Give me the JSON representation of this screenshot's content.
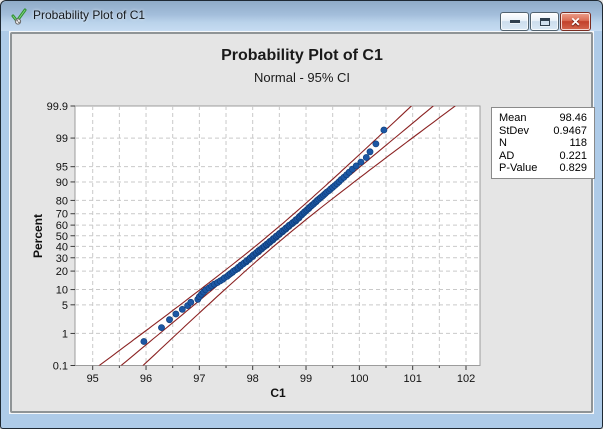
{
  "window": {
    "title": "Probability Plot of C1",
    "icons": {
      "window": "green-check-graph-icon",
      "minimize": "minimize-icon",
      "maximize": "maximize-icon",
      "close": "close-icon"
    }
  },
  "chart_data": {
    "type": "scatter",
    "subtype": "normal-probability-plot",
    "title": "Probability Plot of C1",
    "subtitle": "Normal - 95% CI",
    "xlabel": "C1",
    "ylabel": "Percent",
    "x_ticks": [
      95,
      96,
      97,
      98,
      99,
      100,
      101,
      102
    ],
    "x_minor_step": 0.5,
    "xlim": [
      94.67,
      102.26
    ],
    "y_ticks_percent": [
      0.1,
      1,
      5,
      10,
      20,
      30,
      40,
      50,
      60,
      70,
      80,
      90,
      95,
      99,
      99.9
    ],
    "ylim_percent": [
      0.1,
      99.9
    ],
    "grid": true,
    "legend_position": "outside-right",
    "fit": {
      "distribution": "normal",
      "mean": 98.46,
      "stdev": 0.9467,
      "n": 118,
      "ci_percent": 95
    },
    "stats_box": [
      {
        "label": "Mean",
        "value": "98.46"
      },
      {
        "label": "StDev",
        "value": "0.9467"
      },
      {
        "label": "N",
        "value": "118"
      },
      {
        "label": "AD",
        "value": "0.221"
      },
      {
        "label": "P-Value",
        "value": "0.829"
      }
    ],
    "sample": [
      95.96,
      96.29,
      96.44,
      96.56,
      96.68,
      96.78,
      96.84,
      96.97,
      97.0,
      97.04,
      97.08,
      97.12,
      97.18,
      97.23,
      97.28,
      97.34,
      97.39,
      97.44,
      97.47,
      97.52,
      97.55,
      97.58,
      97.62,
      97.64,
      97.68,
      97.72,
      97.73,
      97.77,
      97.78,
      97.82,
      97.84,
      97.88,
      97.89,
      97.93,
      97.94,
      97.96,
      98.0,
      98.0,
      98.02,
      98.06,
      98.07,
      98.11,
      98.11,
      98.14,
      98.17,
      98.18,
      98.21,
      98.22,
      98.26,
      98.26,
      98.29,
      98.32,
      98.32,
      98.35,
      98.38,
      98.38,
      98.41,
      98.44,
      98.44,
      98.47,
      98.5,
      98.5,
      98.53,
      98.56,
      98.56,
      98.59,
      98.62,
      98.62,
      98.65,
      98.68,
      98.68,
      98.71,
      98.74,
      98.75,
      98.78,
      98.81,
      98.81,
      98.84,
      98.87,
      98.87,
      98.89,
      98.92,
      98.93,
      98.96,
      98.97,
      99.0,
      99.02,
      99.05,
      99.06,
      99.09,
      99.11,
      99.14,
      99.16,
      99.19,
      99.21,
      99.24,
      99.27,
      99.3,
      99.33,
      99.36,
      99.39,
      99.43,
      99.46,
      99.5,
      99.54,
      99.58,
      99.62,
      99.66,
      99.71,
      99.76,
      99.81,
      99.87,
      99.94,
      100.03,
      100.13,
      100.2,
      100.31,
      100.46
    ],
    "colors": {
      "point": "#1c57a4",
      "point_edge": "#0e3c78",
      "fit_line": "#8b2222",
      "grid": "#c9c9c9",
      "plot_bg": "#ffffff",
      "plot_border": "#9c9c9c",
      "figure_bg": "#e5e5e5"
    }
  }
}
